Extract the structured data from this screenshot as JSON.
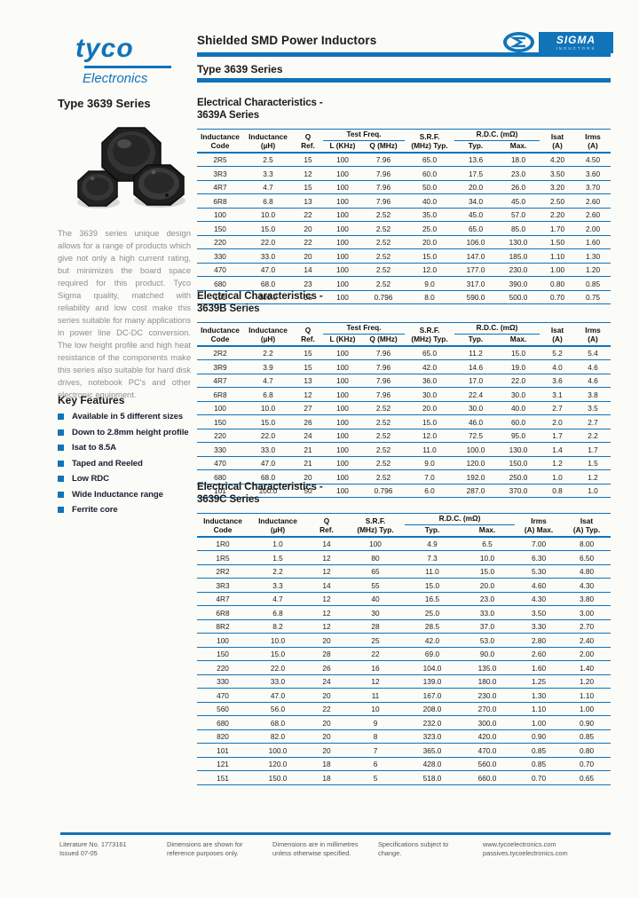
{
  "colors": {
    "accent": "#1173b8"
  },
  "header": {
    "brand_name": "tyco",
    "brand_sub": "Electronics",
    "title": "Shielded SMD Power Inductors",
    "subtitle": "Type 3639 Series",
    "sigma_name": "SIGMA",
    "sigma_sub": "INDUCTORS"
  },
  "sidebar": {
    "heading": "Type 3639 Series",
    "description": "The 3639 series unique design allows for a range of products which give not only a high current rating, but minimizes the board space required for this product. Tyco Sigma quality, matched with reliability and low cost make this series suitable for many applications in power line DC-DC conversion. The low height profile and high heat resistance of the components make this series also suitable for hard disk drives, notebook PC's and other electronic equipment.",
    "features_heading": "Key Features",
    "features": [
      "Available in 5 different sizes",
      "Down to 2.8mm height profile",
      "Isat to 8.5A",
      "Taped and Reeled",
      "Low RDC",
      "Wide Inductance range",
      "Ferrite core"
    ]
  },
  "tables": [
    {
      "title1": "Electrical Characteristics -",
      "title2": "3639A Series",
      "widths": [
        52,
        56,
        34,
        44,
        48,
        56,
        48,
        48,
        40,
        40
      ],
      "columns": [
        {
          "label": [
            "Inductance",
            "Code"
          ]
        },
        {
          "label": [
            "Inductance",
            "(µH)"
          ]
        },
        {
          "label": [
            "Q",
            "Ref."
          ]
        },
        {
          "group": "Test Freq.",
          "sub": [
            "L (KHz)",
            "Q (MHz)"
          ]
        },
        {
          "label": [
            "S.R.F.",
            "(MHz) Typ."
          ]
        },
        {
          "group": "R.D.C. (mΩ)",
          "sub": [
            "Typ.",
            "Max."
          ]
        },
        {
          "label": [
            "Isat",
            "(A)"
          ]
        },
        {
          "label": [
            "Irms",
            "(A)"
          ]
        }
      ],
      "rows": [
        [
          "2R5",
          "2.5",
          "15",
          "100",
          "7.96",
          "65.0",
          "13.6",
          "18.0",
          "4.20",
          "4.50"
        ],
        [
          "3R3",
          "3.3",
          "12",
          "100",
          "7.96",
          "60.0",
          "17.5",
          "23.0",
          "3.50",
          "3.60"
        ],
        [
          "4R7",
          "4.7",
          "15",
          "100",
          "7.96",
          "50.0",
          "20.0",
          "26.0",
          "3.20",
          "3.70"
        ],
        [
          "6R8",
          "6.8",
          "13",
          "100",
          "7.96",
          "40.0",
          "34.0",
          "45.0",
          "2.50",
          "2.60"
        ],
        [
          "100",
          "10.0",
          "22",
          "100",
          "2.52",
          "35.0",
          "45.0",
          "57.0",
          "2.20",
          "2.60"
        ],
        [
          "150",
          "15.0",
          "20",
          "100",
          "2.52",
          "25.0",
          "65.0",
          "85.0",
          "1.70",
          "2.00"
        ],
        [
          "220",
          "22.0",
          "22",
          "100",
          "2.52",
          "20.0",
          "106.0",
          "130.0",
          "1.50",
          "1.60"
        ],
        [
          "330",
          "33.0",
          "20",
          "100",
          "2.52",
          "15.0",
          "147.0",
          "185.0",
          "1.10",
          "1.30"
        ],
        [
          "470",
          "47.0",
          "14",
          "100",
          "2.52",
          "12.0",
          "177.0",
          "230.0",
          "1.00",
          "1.20"
        ],
        [
          "680",
          "68.0",
          "23",
          "100",
          "2.52",
          "9.0",
          "317.0",
          "390.0",
          "0.80",
          "0.85"
        ],
        [
          "101",
          "100.0",
          "35",
          "100",
          "0.796",
          "8.0",
          "590.0",
          "500.0",
          "0.70",
          "0.75"
        ]
      ]
    },
    {
      "title1": "Electrical Characteristics -",
      "title2": "3639B Series",
      "widths": [
        52,
        56,
        34,
        44,
        48,
        56,
        48,
        48,
        40,
        40
      ],
      "columns": [
        {
          "label": [
            "Inductance",
            "Code"
          ]
        },
        {
          "label": [
            "Inductance",
            "(µH)"
          ]
        },
        {
          "label": [
            "Q",
            "Ref."
          ]
        },
        {
          "group": "Test Freq.",
          "sub": [
            "L (KHz)",
            "Q (MHz)"
          ]
        },
        {
          "label": [
            "S.R.F.",
            "(MHz) Typ."
          ]
        },
        {
          "group": "R.D.C. (mΩ)",
          "sub": [
            "Typ.",
            "Max."
          ]
        },
        {
          "label": [
            "Isat",
            "(A)"
          ]
        },
        {
          "label": [
            "Irms",
            "(A)"
          ]
        }
      ],
      "rows": [
        [
          "2R2",
          "2.2",
          "15",
          "100",
          "7.96",
          "65.0",
          "11.2",
          "15.0",
          "5.2",
          "5.4"
        ],
        [
          "3R9",
          "3.9",
          "15",
          "100",
          "7.96",
          "42.0",
          "14.6",
          "19.0",
          "4.0",
          "4.6"
        ],
        [
          "4R7",
          "4.7",
          "13",
          "100",
          "7.96",
          "36.0",
          "17.0",
          "22.0",
          "3.6",
          "4.6"
        ],
        [
          "6R8",
          "6.8",
          "12",
          "100",
          "7.96",
          "30.0",
          "22.4",
          "30.0",
          "3.1",
          "3.8"
        ],
        [
          "100",
          "10.0",
          "27",
          "100",
          "2.52",
          "20.0",
          "30.0",
          "40.0",
          "2.7",
          "3.5"
        ],
        [
          "150",
          "15.0",
          "26",
          "100",
          "2.52",
          "15.0",
          "46.0",
          "60.0",
          "2.0",
          "2.7"
        ],
        [
          "220",
          "22.0",
          "24",
          "100",
          "2.52",
          "12.0",
          "72.5",
          "95.0",
          "1.7",
          "2.2"
        ],
        [
          "330",
          "33.0",
          "21",
          "100",
          "2.52",
          "11.0",
          "100.0",
          "130.0",
          "1.4",
          "1.7"
        ],
        [
          "470",
          "47.0",
          "21",
          "100",
          "2.52",
          "9.0",
          "120.0",
          "150.0",
          "1.2",
          "1.5"
        ],
        [
          "680",
          "68.0",
          "20",
          "100",
          "2.52",
          "7.0",
          "192.0",
          "250.0",
          "1.0",
          "1.2"
        ],
        [
          "101",
          "100.0",
          "50",
          "100",
          "0.796",
          "6.0",
          "287.0",
          "370.0",
          "0.8",
          "1.0"
        ]
      ]
    },
    {
      "title1": "Electrical Characteristics -",
      "title2": "3639C Series",
      "widths": [
        58,
        66,
        44,
        66,
        62,
        62,
        54,
        54
      ],
      "columns": [
        {
          "label": [
            "Inductance",
            "Code"
          ]
        },
        {
          "label": [
            "Inductance",
            "(µH)"
          ]
        },
        {
          "label": [
            "Q",
            "Ref."
          ]
        },
        {
          "label": [
            "S.R.F.",
            "(MHz) Typ."
          ]
        },
        {
          "group": "R.D.C. (mΩ)",
          "sub": [
            "Typ.",
            "Max."
          ]
        },
        {
          "label": [
            "Irms",
            "(A) Max."
          ]
        },
        {
          "label": [
            "Isat",
            "(A) Typ."
          ]
        }
      ],
      "rows": [
        [
          "1R0",
          "1.0",
          "14",
          "100",
          "4.9",
          "6.5",
          "7.00",
          "8.00"
        ],
        [
          "1R5",
          "1.5",
          "12",
          "80",
          "7.3",
          "10.0",
          "6.30",
          "6.50"
        ],
        [
          "2R2",
          "2.2",
          "12",
          "65",
          "11.0",
          "15.0",
          "5.30",
          "4.80"
        ],
        [
          "3R3",
          "3.3",
          "14",
          "55",
          "15.0",
          "20.0",
          "4.60",
          "4.30"
        ],
        [
          "4R7",
          "4.7",
          "12",
          "40",
          "16.5",
          "23.0",
          "4.30",
          "3.80"
        ],
        [
          "6R8",
          "6.8",
          "12",
          "30",
          "25.0",
          "33.0",
          "3.50",
          "3.00"
        ],
        [
          "8R2",
          "8.2",
          "12",
          "28",
          "28.5",
          "37.0",
          "3.30",
          "2.70"
        ],
        [
          "100",
          "10.0",
          "20",
          "25",
          "42.0",
          "53.0",
          "2.80",
          "2.40"
        ],
        [
          "150",
          "15.0",
          "28",
          "22",
          "69.0",
          "90.0",
          "2.60",
          "2.00"
        ],
        [
          "220",
          "22.0",
          "26",
          "16",
          "104.0",
          "135.0",
          "1.60",
          "1.40"
        ],
        [
          "330",
          "33.0",
          "24",
          "12",
          "139.0",
          "180.0",
          "1.25",
          "1.20"
        ],
        [
          "470",
          "47.0",
          "20",
          "11",
          "167.0",
          "230.0",
          "1.30",
          "1.10"
        ],
        [
          "560",
          "56.0",
          "22",
          "10",
          "208.0",
          "270.0",
          "1.10",
          "1.00"
        ],
        [
          "680",
          "68.0",
          "20",
          "9",
          "232.0",
          "300.0",
          "1.00",
          "0.90"
        ],
        [
          "820",
          "82.0",
          "20",
          "8",
          "323.0",
          "420.0",
          "0.90",
          "0.85"
        ],
        [
          "101",
          "100.0",
          "20",
          "7",
          "365.0",
          "470.0",
          "0.85",
          "0.80"
        ],
        [
          "121",
          "120.0",
          "18",
          "6",
          "428.0",
          "560.0",
          "0.85",
          "0.70"
        ],
        [
          "151",
          "150.0",
          "18",
          "5",
          "518.0",
          "660.0",
          "0.70",
          "0.65"
        ]
      ]
    }
  ],
  "footer": {
    "notes": [
      {
        "line1": "Literature No. 1773161",
        "line2": "Issued 07-05"
      },
      {
        "line1": "Dimensions are shown for",
        "line2": "reference purposes only."
      },
      {
        "line1": "Dimensions are in millimetres",
        "line2": "unless otherwise specified."
      },
      {
        "line1": "Specifications subject to",
        "line2": "change."
      },
      {
        "line1": "www.tycoelectronics.com",
        "line2": "passives.tycoelectronics.com"
      }
    ]
  }
}
